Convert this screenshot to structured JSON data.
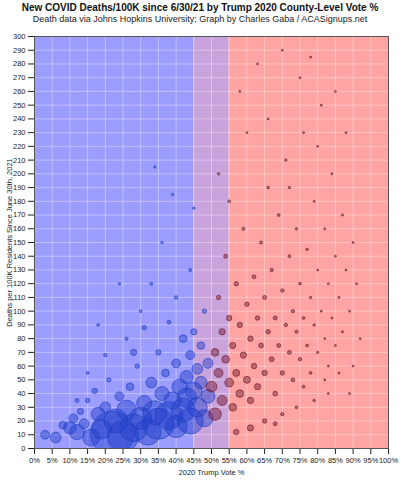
{
  "chart_data": {
    "type": "scatter",
    "title": "New COVID Deaths/100K since 6/30/21 by Trump 2020 County-Level Vote %",
    "subtitle": "Death data via Johns Hopkins University; Graph by Charles Gaba / ACASignups.net",
    "x_label": "2020 Trump Vote %",
    "y_label": "Deaths per 100K Residents Since June 30th, 2021",
    "xlim": [
      0,
      100
    ],
    "ylim": [
      0,
      300
    ],
    "xticks": [
      {
        "value": 0,
        "label": "0%"
      },
      {
        "value": 5,
        "label": "5%"
      },
      {
        "value": 10,
        "label": "10%"
      },
      {
        "value": 15,
        "label": "15%"
      },
      {
        "value": 20,
        "label": "20%"
      },
      {
        "value": 25,
        "label": "25%"
      },
      {
        "value": 30,
        "label": "30%"
      },
      {
        "value": 35,
        "label": "35%"
      },
      {
        "value": 40,
        "label": "40%"
      },
      {
        "value": 45,
        "label": "45%"
      },
      {
        "value": 50,
        "label": "50%"
      },
      {
        "value": 55,
        "label": "55%"
      },
      {
        "value": 60,
        "label": "60%"
      },
      {
        "value": 65,
        "label": "65%"
      },
      {
        "value": 70,
        "label": "70%"
      },
      {
        "value": 75,
        "label": "75%"
      },
      {
        "value": 80,
        "label": "80%"
      },
      {
        "value": 85,
        "label": "85%"
      },
      {
        "value": 90,
        "label": "90%"
      },
      {
        "value": 95,
        "label": "95%"
      },
      {
        "value": 100,
        "label": "100%"
      }
    ],
    "yticks": [
      0,
      10,
      20,
      30,
      40,
      50,
      60,
      70,
      80,
      90,
      100,
      110,
      120,
      130,
      140,
      150,
      160,
      170,
      180,
      190,
      200,
      210,
      220,
      230,
      240,
      250,
      260,
      270,
      280,
      290,
      300
    ],
    "grid": true,
    "regions": [
      {
        "x1": 0,
        "x2": 45,
        "color": "#9d9dff"
      },
      {
        "x1": 45,
        "x2": 55,
        "color": "#c9a3dc"
      },
      {
        "x1": 55,
        "x2": 100,
        "color": "#ffa3a3"
      }
    ],
    "series": [
      {
        "color": "#1f3fc8",
        "x": [
          3,
          6,
          8,
          10,
          11,
          12,
          13,
          14,
          15,
          16,
          17,
          18,
          19,
          20,
          21,
          22,
          23,
          24,
          25,
          26,
          27,
          28,
          29,
          30,
          31,
          32,
          33,
          34,
          35,
          35,
          36,
          37,
          38,
          38,
          39,
          40,
          40,
          41,
          42,
          42,
          43,
          43,
          44,
          44,
          45,
          45,
          46,
          46,
          47,
          47,
          48,
          48,
          49,
          49,
          12,
          20,
          26,
          30,
          33,
          15,
          36,
          40,
          44,
          45,
          34,
          39,
          24,
          18,
          28,
          31
        ],
        "values": [
          10,
          8,
          17,
          15,
          22,
          12,
          27,
          18,
          35,
          8,
          42,
          25,
          14,
          30,
          50,
          11,
          20,
          38,
          9,
          28,
          45,
          15,
          60,
          22,
          33,
          12,
          48,
          26,
          70,
          18,
          40,
          55,
          24,
          92,
          35,
          16,
          62,
          45,
          28,
          80,
          52,
          37,
          20,
          68,
          42,
          85,
          30,
          58,
          48,
          75,
          22,
          100,
          38,
          62,
          35,
          68,
          80,
          100,
          120,
          55,
          150,
          110,
          130,
          175,
          205,
          185,
          120,
          90,
          70,
          88
        ],
        "sizes": [
          40,
          60,
          30,
          80,
          40,
          120,
          20,
          50,
          10,
          150,
          15,
          100,
          200,
          60,
          10,
          1000,
          300,
          40,
          500,
          200,
          30,
          400,
          10,
          250,
          120,
          350,
          60,
          300,
          15,
          500,
          100,
          30,
          400,
          8,
          150,
          250,
          40,
          120,
          300,
          30,
          90,
          200,
          350,
          40,
          150,
          20,
          200,
          60,
          80,
          30,
          150,
          10,
          100,
          50,
          8,
          6,
          5,
          4,
          5,
          4,
          3,
          6,
          5,
          3,
          3,
          3,
          3,
          4,
          20,
          10
        ]
      },
      {
        "color": "#6e1426",
        "x": [
          50,
          51,
          51,
          52,
          52,
          53,
          53,
          54,
          54,
          55,
          55,
          56,
          56,
          57,
          57,
          58,
          58,
          59,
          59,
          60,
          60,
          61,
          61,
          62,
          62,
          63,
          63,
          64,
          64,
          65,
          65,
          66,
          66,
          67,
          67,
          68,
          68,
          69,
          69,
          70,
          70,
          71,
          71,
          72,
          72,
          73,
          73,
          74,
          74,
          75,
          75,
          76,
          76,
          77,
          77,
          78,
          78,
          79,
          79,
          80,
          80,
          81,
          81,
          82,
          82,
          83,
          83,
          84,
          84,
          85,
          85,
          86,
          87,
          87,
          88,
          89,
          90,
          90,
          91,
          58,
          63,
          70,
          75,
          66,
          80,
          52,
          55,
          60,
          72,
          78,
          85,
          88,
          61,
          65,
          70,
          74,
          79,
          83,
          57,
          68,
          76,
          82,
          86,
          89,
          92
        ],
        "values": [
          45,
          70,
          25,
          55,
          110,
          35,
          85,
          65,
          140,
          48,
          95,
          30,
          75,
          120,
          55,
          40,
          90,
          160,
          68,
          50,
          105,
          80,
          35,
          125,
          60,
          95,
          45,
          150,
          75,
          110,
          55,
          85,
          190,
          65,
          130,
          95,
          40,
          170,
          75,
          115,
          55,
          90,
          210,
          140,
          70,
          100,
          50,
          160,
          85,
          120,
          65,
          230,
          95,
          145,
          75,
          110,
          55,
          180,
          90,
          130,
          70,
          250,
          100,
          160,
          80,
          120,
          60,
          200,
          95,
          140,
          75,
          110,
          170,
          85,
          130,
          100,
          150,
          60,
          120,
          260,
          280,
          290,
          270,
          240,
          220,
          200,
          180,
          230,
          190,
          285,
          260,
          230,
          15,
          20,
          25,
          30,
          35,
          40,
          12,
          18,
          45,
          50,
          55,
          40,
          80
        ],
        "sizes": [
          60,
          30,
          80,
          40,
          10,
          50,
          20,
          30,
          8,
          40,
          15,
          30,
          20,
          10,
          25,
          30,
          15,
          5,
          20,
          25,
          10,
          15,
          20,
          8,
          15,
          10,
          20,
          5,
          12,
          8,
          15,
          10,
          4,
          12,
          6,
          8,
          12,
          4,
          8,
          6,
          10,
          6,
          3,
          4,
          8,
          5,
          7,
          3,
          5,
          4,
          6,
          2,
          4,
          3,
          4,
          3,
          4,
          2,
          3,
          2,
          3,
          2,
          2,
          2,
          2,
          2,
          2,
          2,
          2,
          2,
          2,
          2,
          2,
          2,
          2,
          2,
          2,
          2,
          2,
          2,
          2,
          2,
          2,
          2,
          2,
          3,
          4,
          2,
          3,
          2,
          2,
          2,
          20,
          10,
          6,
          4,
          3,
          2,
          15,
          8,
          4,
          2,
          2,
          2,
          2
        ]
      }
    ]
  }
}
